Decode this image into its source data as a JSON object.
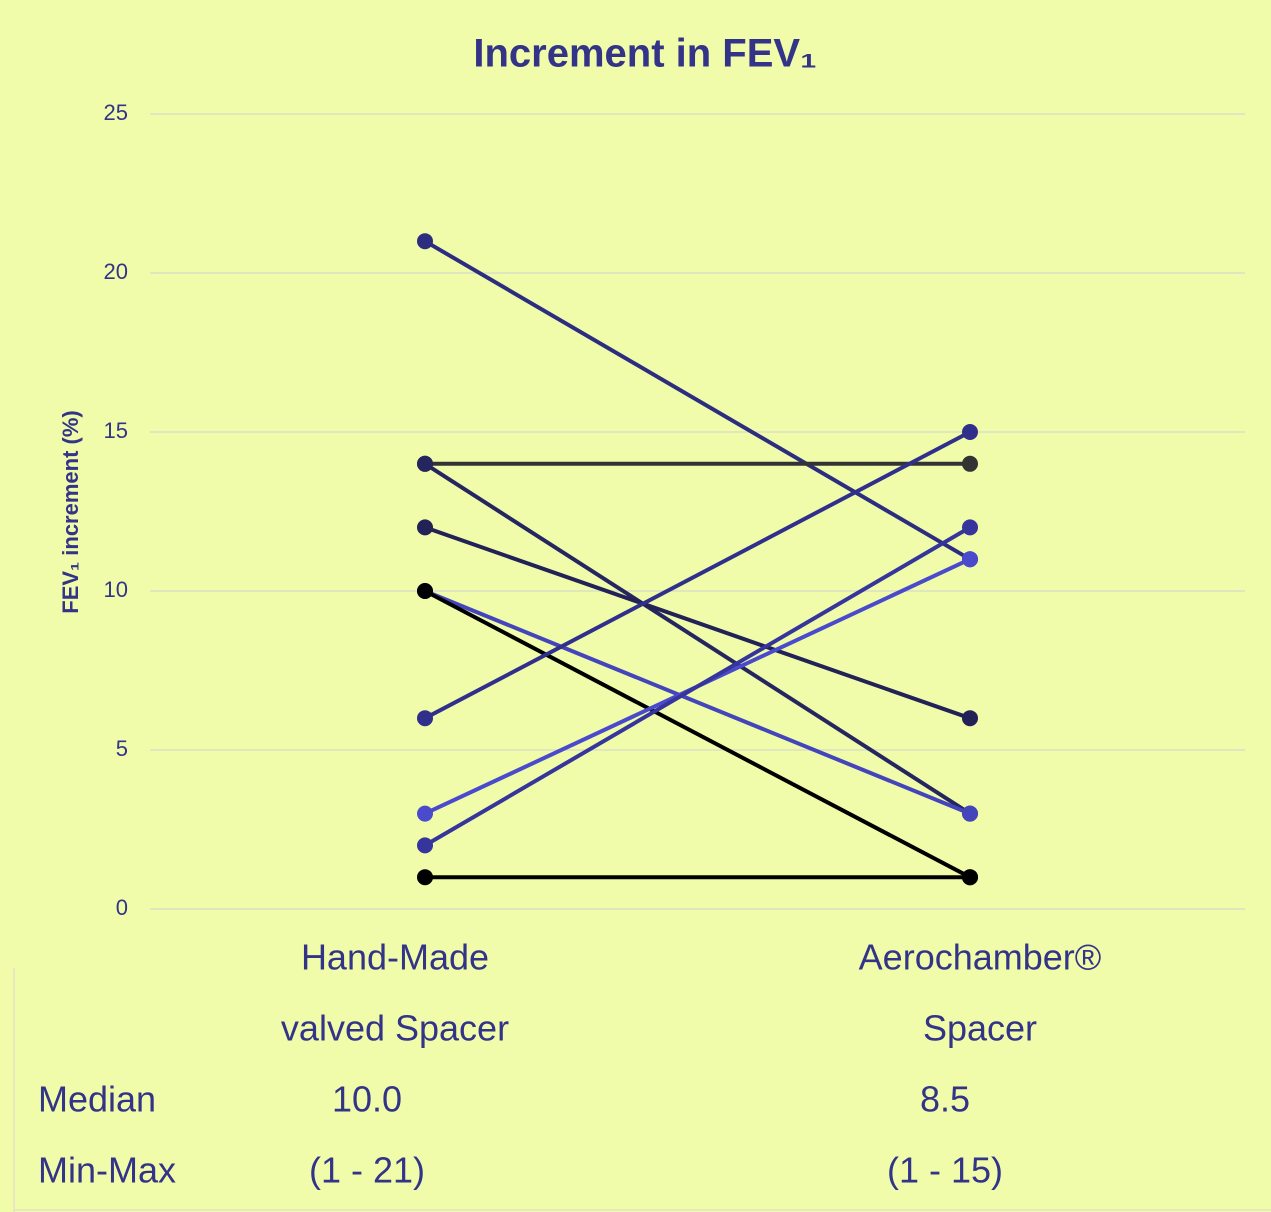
{
  "chart_data": {
    "type": "paired-line",
    "title": "Increment in FEV₁",
    "y_label": "FEV₁ increment (%)",
    "categories": [
      [
        "Hand-Made",
        "valved Spacer"
      ],
      [
        "Aerochamber®",
        "Spacer"
      ]
    ],
    "ylim": [
      0,
      25
    ],
    "yticks": [
      0,
      5,
      10,
      15,
      20,
      25
    ],
    "grid": true,
    "series": [
      {
        "color": "#2d2d80",
        "values": [
          21,
          11
        ]
      },
      {
        "color": "#333333",
        "values": [
          14,
          14
        ]
      },
      {
        "color": "#25255f",
        "values": [
          14,
          3
        ]
      },
      {
        "color": "#222256",
        "values": [
          12,
          6
        ]
      },
      {
        "color": "#4545bb",
        "values": [
          10,
          3
        ]
      },
      {
        "color": "#000000",
        "values": [
          10,
          1
        ]
      },
      {
        "color": "#30308c",
        "values": [
          6,
          15
        ]
      },
      {
        "color": "#4a4acc",
        "values": [
          3,
          11
        ]
      },
      {
        "color": "#35359c",
        "values": [
          2,
          12
        ]
      },
      {
        "color": "#000000",
        "values": [
          1,
          1
        ]
      }
    ],
    "stats": {
      "rows": [
        [
          "Median",
          "10.0",
          "8.5"
        ],
        [
          "Min-Max",
          "(1 - 21)",
          "(1 - 15)"
        ]
      ]
    }
  }
}
